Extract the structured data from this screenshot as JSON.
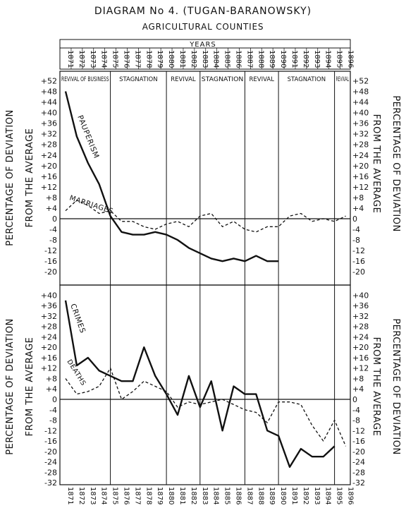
{
  "title": "DIAGRAM No 4. (TUGAN-BARANOWSKY)",
  "subtitle": "AGRICULTURAL COUNTIES",
  "years_label": "YEARS",
  "years": [
    "1871",
    "1872",
    "1873",
    "1874",
    "1875",
    "1876",
    "1877",
    "1878",
    "1879",
    "1880",
    "1881",
    "1882",
    "1883",
    "1884",
    "1885",
    "1886",
    "1887",
    "1888",
    "1889",
    "1890",
    "1891",
    "1892",
    "1893",
    "1894",
    "1895",
    "1896"
  ],
  "periods": [
    {
      "label": "REVIVAL OF BUSINESS",
      "start": "1871",
      "end": "1875"
    },
    {
      "label": "STAGNATION",
      "start": "1875",
      "end": "1880"
    },
    {
      "label": "REVIVAL",
      "start": "1880",
      "end": "1883"
    },
    {
      "label": "STAGNATION",
      "start": "1883",
      "end": "1887"
    },
    {
      "label": "REVIVAL",
      "start": "1887",
      "end": "1890"
    },
    {
      "label": "STAGNATION",
      "start": "1890",
      "end": "1895"
    },
    {
      "label": "REVIVAL",
      "start": "1895",
      "end": "1896"
    }
  ],
  "chart_data": [
    {
      "type": "line",
      "ylabel_left": "PERCENTAGE OF DEVIATION FROM THE AVERAGE",
      "ylabel_right": "PERCENTAGE OF DEVIATION FROM THE AVERAGE",
      "ylim": [
        -22,
        52
      ],
      "yticks": [
        "+52",
        "+48",
        "+44",
        "+40",
        "+36",
        "+32",
        "+28",
        "+24",
        "+20",
        "+16",
        "+12",
        "+8",
        "+4",
        "0",
        "-4",
        "-8",
        "-12",
        "-16",
        "-20"
      ],
      "ytick_values": [
        52,
        48,
        44,
        40,
        36,
        32,
        28,
        24,
        20,
        16,
        12,
        8,
        4,
        0,
        -4,
        -8,
        -12,
        -16,
        -20
      ],
      "series": [
        {
          "name": "PAUPERISM",
          "style": "solid",
          "x": [
            1871,
            1872,
            1873,
            1874,
            1875,
            1876,
            1877,
            1878,
            1879,
            1880,
            1881,
            1882,
            1883,
            1884,
            1885,
            1886,
            1887,
            1888,
            1889,
            1890
          ],
          "values": [
            48,
            31,
            21,
            13,
            1,
            -5,
            -6,
            -6,
            -5,
            -6,
            -8,
            -11,
            -13,
            -15,
            -16,
            -15,
            -16,
            -14,
            -16,
            -16
          ]
        },
        {
          "name": "MARRIAGES",
          "style": "dashed",
          "x": [
            1871,
            1872,
            1873,
            1874,
            1875,
            1876,
            1877,
            1878,
            1879,
            1880,
            1881,
            1882,
            1883,
            1884,
            1885,
            1886,
            1887,
            1888,
            1889,
            1890,
            1891,
            1892,
            1893,
            1894,
            1895,
            1896
          ],
          "values": [
            3,
            7,
            5,
            2,
            3,
            -1,
            -1,
            -3,
            -4,
            -2,
            -1,
            -3,
            1,
            2,
            -3,
            -1,
            -4,
            -5,
            -3,
            -3,
            1,
            2,
            -1,
            0,
            -1,
            1
          ]
        }
      ]
    },
    {
      "type": "line",
      "ylabel_left": "PERCENTAGE OF DEVIATION FROM THE AVERAGE",
      "ylabel_right": "PERCENTAGE OF DEVIATION FROM THE AVERAGE",
      "ylim": [
        -32,
        42
      ],
      "yticks": [
        "+40",
        "+36",
        "+32",
        "+28",
        "+24",
        "+20",
        "+16",
        "+12",
        "+8",
        "+4",
        "0",
        "-4",
        "-8",
        "-12",
        "-16",
        "-20",
        "-24",
        "-28",
        "-32"
      ],
      "ytick_values": [
        40,
        36,
        32,
        28,
        24,
        20,
        16,
        12,
        8,
        4,
        0,
        -4,
        -8,
        -12,
        -16,
        -20,
        -24,
        -28,
        -32
      ],
      "series": [
        {
          "name": "CRIMES",
          "style": "solid",
          "x": [
            1871,
            1872,
            1873,
            1874,
            1875,
            1876,
            1877,
            1878,
            1879,
            1880,
            1881,
            1882,
            1883,
            1884,
            1885,
            1886,
            1887,
            1888,
            1889,
            1890,
            1891,
            1892,
            1893,
            1894,
            1895
          ],
          "values": [
            38,
            13,
            16,
            11,
            9,
            7,
            7,
            20,
            9,
            2,
            -6,
            9,
            -3,
            7,
            -12,
            5,
            2,
            2,
            -12,
            -14,
            -26,
            -19,
            -22,
            -22,
            -18
          ]
        },
        {
          "name": "DEATHS",
          "style": "dashed",
          "x": [
            1871,
            1872,
            1873,
            1874,
            1875,
            1876,
            1877,
            1878,
            1879,
            1880,
            1881,
            1882,
            1883,
            1884,
            1885,
            1886,
            1887,
            1888,
            1889,
            1890,
            1891,
            1892,
            1893,
            1894,
            1895,
            1896
          ],
          "values": [
            8,
            2,
            3,
            5,
            12,
            0,
            3,
            7,
            5,
            3,
            -3,
            -1,
            -2,
            -1,
            0,
            -2,
            -4,
            -5,
            -9,
            -1,
            -1,
            -2,
            -10,
            -16,
            -8,
            -18
          ]
        }
      ]
    }
  ]
}
